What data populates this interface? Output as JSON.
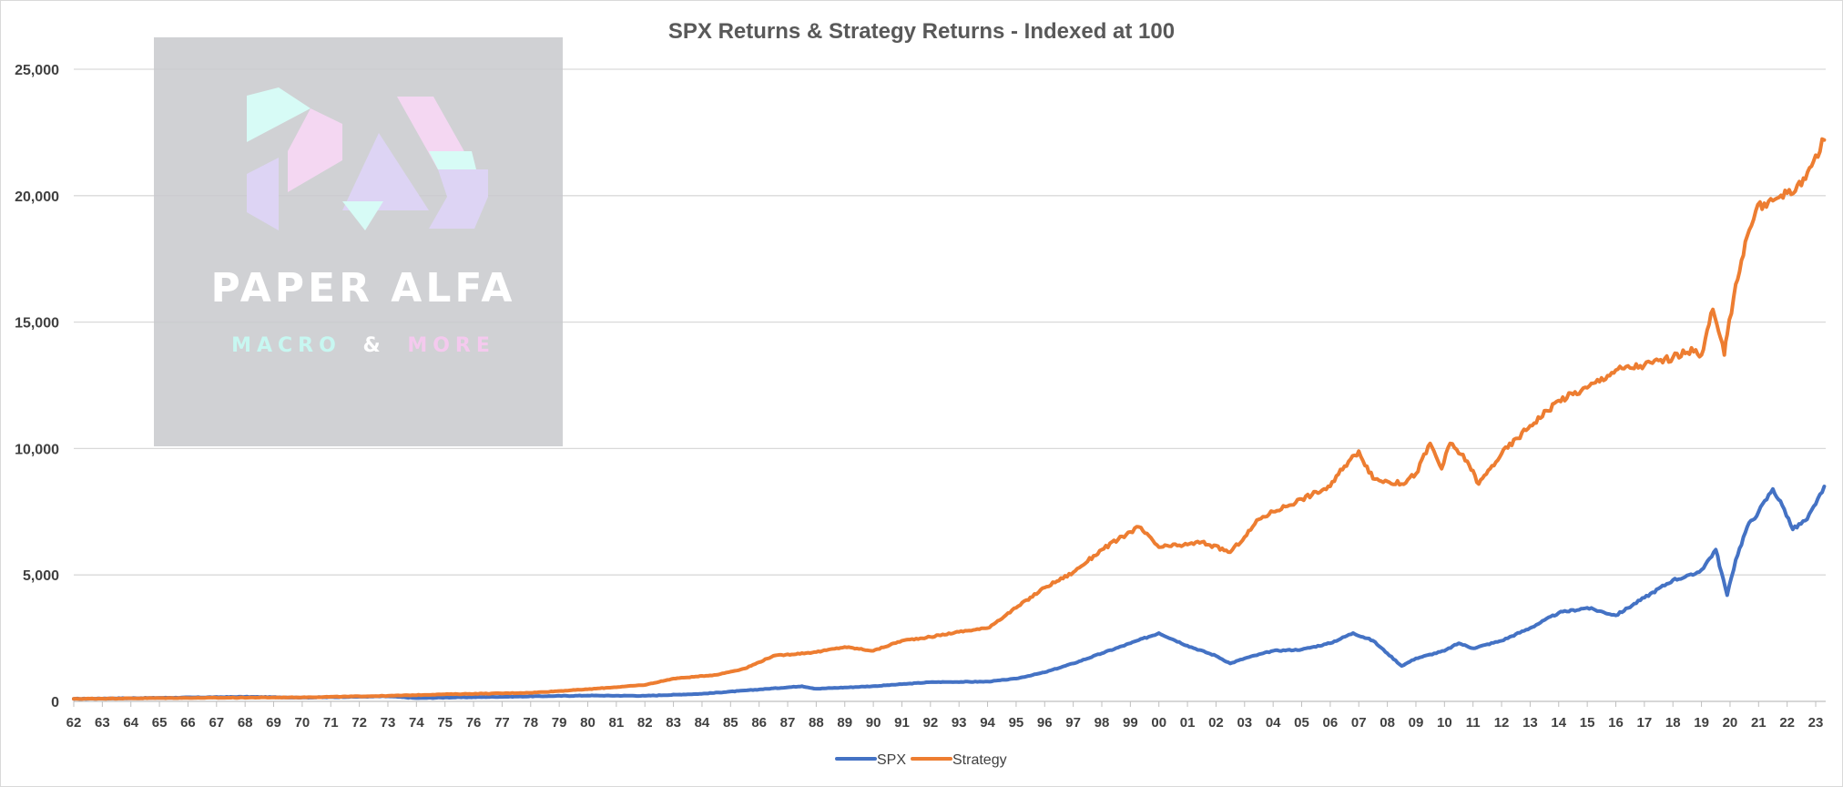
{
  "chart_data": {
    "type": "line",
    "title": "SPX Returns & Strategy Returns - Indexed at 100",
    "xlabel": "",
    "ylabel": "",
    "ylim": [
      0,
      25000
    ],
    "y_ticks": [
      0,
      5000,
      10000,
      15000,
      20000,
      25000
    ],
    "y_tick_labels": [
      "0",
      "5,000",
      "10,000",
      "15,000",
      "20,000",
      "25,000"
    ],
    "x_tick_labels": [
      "62",
      "63",
      "64",
      "65",
      "66",
      "67",
      "68",
      "69",
      "70",
      "71",
      "72",
      "73",
      "74",
      "75",
      "76",
      "77",
      "78",
      "79",
      "80",
      "81",
      "82",
      "83",
      "84",
      "85",
      "86",
      "87",
      "88",
      "89",
      "90",
      "91",
      "92",
      "93",
      "94",
      "95",
      "96",
      "97",
      "98",
      "99",
      "00",
      "01",
      "02",
      "03",
      "04",
      "05",
      "06",
      "07",
      "08",
      "09",
      "10",
      "11",
      "12",
      "13",
      "14",
      "15",
      "16",
      "17",
      "18",
      "19",
      "20",
      "21",
      "22",
      "23"
    ],
    "grid": "horizontal",
    "legend": "bottom",
    "series": [
      {
        "name": "SPX",
        "color": "#4472c4",
        "x": [
          1962.0,
          1965.0,
          1968.0,
          1970.0,
          1973.0,
          1974.0,
          1975.0,
          1980.0,
          1982.0,
          1984.0,
          1987.5,
          1988.0,
          1990.0,
          1991.0,
          1992.0,
          1994.0,
          1995.0,
          1996.0,
          1997.0,
          1998.0,
          1999.0,
          2000.0,
          2001.0,
          2002.0,
          2002.5,
          2003.0,
          2004.0,
          2005.0,
          2006.0,
          2006.8,
          2007.5,
          2008.0,
          2008.5,
          2009.0,
          2010.0,
          2010.5,
          2011.0,
          2012.0,
          2013.0,
          2014.0,
          2015.0,
          2016.0,
          2017.0,
          2018.0,
          2018.7,
          2019.0,
          2019.5,
          2019.9,
          2020.2,
          2020.6,
          2021.0,
          2021.5,
          2021.9,
          2022.2,
          2022.7,
          2023.0,
          2023.3
        ],
        "values": [
          100,
          140,
          180,
          150,
          200,
          130,
          150,
          230,
          220,
          300,
          600,
          500,
          600,
          680,
          760,
          780,
          900,
          1150,
          1500,
          1900,
          2300,
          2700,
          2200,
          1800,
          1500,
          1700,
          2000,
          2050,
          2300,
          2700,
          2400,
          1900,
          1400,
          1700,
          2000,
          2300,
          2100,
          2400,
          2900,
          3500,
          3700,
          3400,
          4100,
          4800,
          5000,
          5200,
          6000,
          4200,
          5600,
          6900,
          7500,
          8400,
          7600,
          6800,
          7200,
          7800,
          8500
        ]
      },
      {
        "name": "Strategy",
        "color": "#ed7d31",
        "x": [
          1962.0,
          1965.0,
          1970.0,
          1973.0,
          1975.0,
          1978.0,
          1980.0,
          1982.0,
          1983.0,
          1984.5,
          1985.5,
          1986.5,
          1988.0,
          1989.0,
          1990.0,
          1991.0,
          1992.0,
          1993.0,
          1994.0,
          1995.0,
          1996.0,
          1997.0,
          1998.0,
          1999.0,
          1999.3,
          2000.0,
          2001.0,
          2001.5,
          2002.5,
          2003.0,
          2003.5,
          2004.0,
          2005.0,
          2006.0,
          2006.5,
          2007.0,
          2007.5,
          2008.0,
          2008.5,
          2009.0,
          2009.5,
          2009.9,
          2010.2,
          2010.8,
          2011.2,
          2011.6,
          2012.0,
          2013.0,
          2014.0,
          2015.0,
          2016.0,
          2017.0,
          2018.0,
          2018.5,
          2018.8,
          2019.0,
          2019.4,
          2019.8,
          2019.9,
          2020.2,
          2020.6,
          2020.9,
          2021.2,
          2021.5,
          2022.0,
          2022.5,
          2023.0,
          2023.3
        ],
        "values": [
          100,
          130,
          160,
          220,
          280,
          340,
          480,
          650,
          900,
          1050,
          1300,
          1800,
          1950,
          2150,
          2000,
          2400,
          2550,
          2750,
          2900,
          3700,
          4500,
          5100,
          6000,
          6700,
          6900,
          6100,
          6200,
          6300,
          5900,
          6500,
          7200,
          7500,
          8000,
          8500,
          9300,
          9900,
          8800,
          8700,
          8600,
          9000,
          10200,
          9200,
          10200,
          9500,
          8600,
          9200,
          9800,
          10900,
          11900,
          12400,
          13100,
          13300,
          13600,
          13800,
          13900,
          13700,
          15500,
          13700,
          14500,
          16500,
          18400,
          19400,
          19700,
          19800,
          20100,
          20400,
          21600,
          22200
        ]
      }
    ]
  },
  "watermark": {
    "title": "PAPER ALFA",
    "subtitle_part1": "MACRO",
    "subtitle_amp": "&",
    "subtitle_part2": "MORE"
  }
}
